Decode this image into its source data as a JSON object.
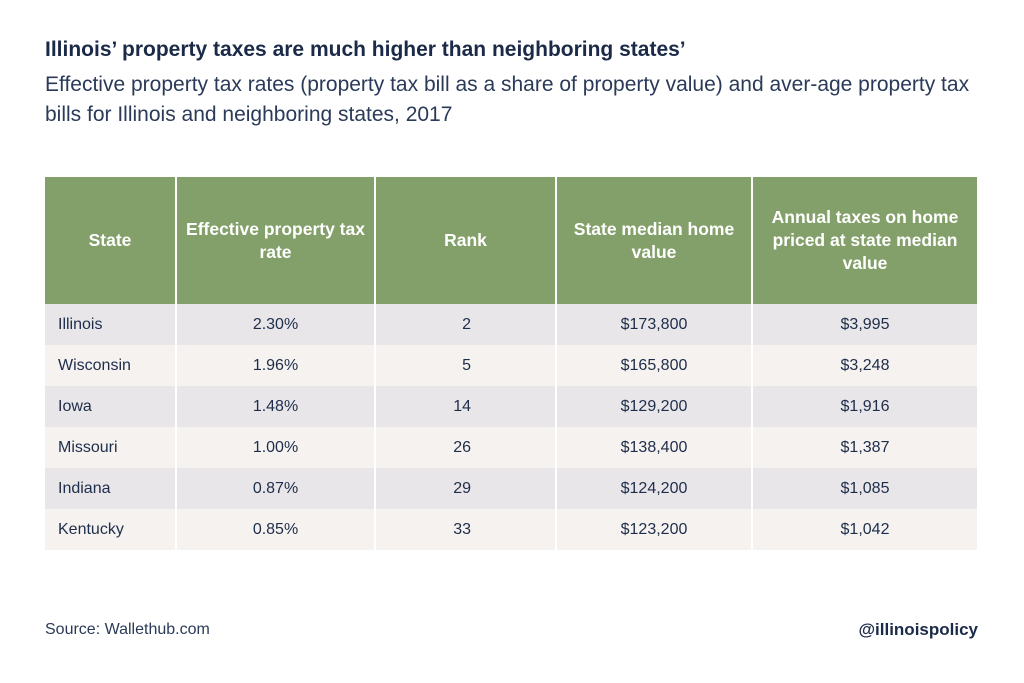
{
  "title": "Illinois’ property taxes are much higher than neighboring states’",
  "subtitle": "Effective property tax rates (property tax bill as a share of property value) and aver-age property tax bills for Illinois and neighboring states, 2017",
  "chart_data": {
    "type": "table",
    "columns": [
      "State",
      "Effective property tax rate",
      "Rank",
      "State median home value",
      "Annual taxes on home priced at state median value"
    ],
    "rows": [
      [
        "Illinois",
        "2.30%",
        "2",
        "$173,800",
        "$3,995"
      ],
      [
        "Wisconsin",
        "1.96%",
        "5",
        "$165,800",
        "$3,248"
      ],
      [
        "Iowa",
        "1.48%",
        "14",
        "$129,200",
        "$1,916"
      ],
      [
        "Missouri",
        "1.00%",
        "26",
        "$138,400",
        "$1,387"
      ],
      [
        "Indiana",
        "0.87%",
        "29",
        "$124,200",
        "$1,085"
      ],
      [
        "Kentucky",
        "0.85%",
        "33",
        "$123,200",
        "$1,042"
      ]
    ]
  },
  "source": "Source: Wallethub.com",
  "handle": "@illinoispolicy",
  "colors": {
    "header": "#84a06a",
    "row_odd": "#e8e6e9",
    "row_even": "#f5f2ef",
    "text": "#1e2d4a"
  }
}
